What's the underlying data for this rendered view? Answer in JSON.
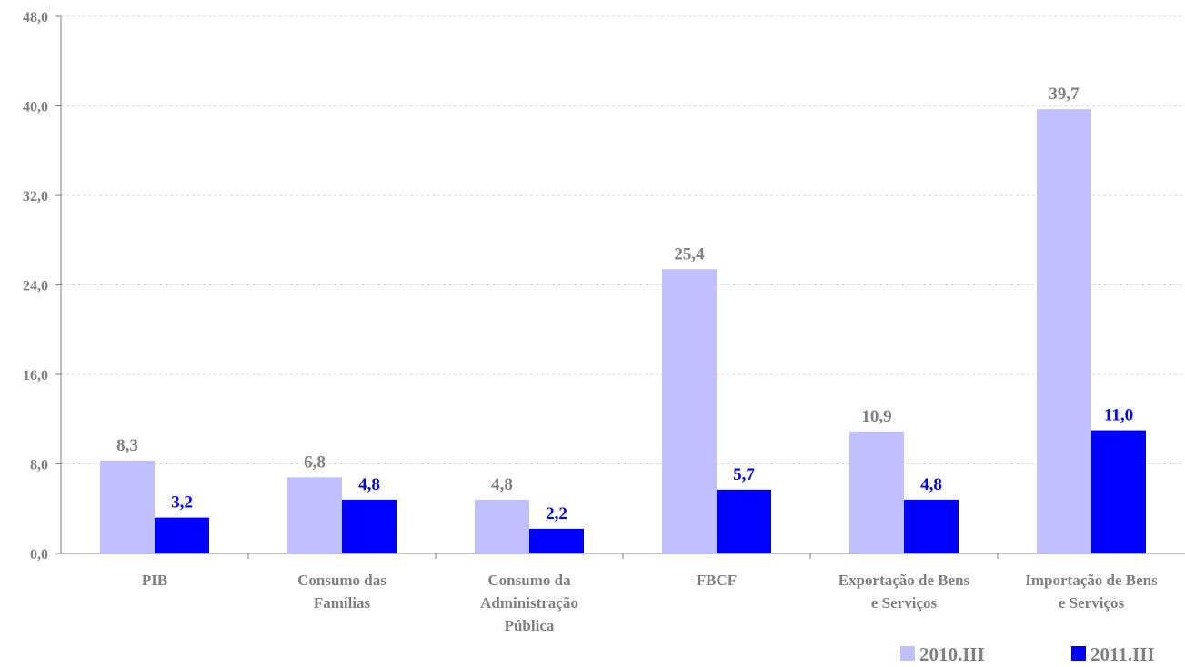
{
  "chart_data": {
    "type": "bar",
    "categories": [
      [
        "PIB"
      ],
      [
        "Consumo das",
        "Famílias"
      ],
      [
        "Consumo da",
        "Administração",
        "Pública"
      ],
      [
        "FBCF"
      ],
      [
        "Exportação de Bens",
        "e Serviços"
      ],
      [
        "Importação de Bens",
        "e Serviços"
      ]
    ],
    "series": [
      {
        "name": "2010.III",
        "color": "#c0c0ff",
        "label_color": "#808080",
        "values": [
          8.3,
          6.8,
          4.8,
          25.4,
          10.9,
          39.7
        ],
        "labels": [
          "8,3",
          "6,8",
          "4,8",
          "25,4",
          "10,9",
          "39,7"
        ]
      },
      {
        "name": "2011.III",
        "color": "#0000ff",
        "label_color": "#0000ff",
        "values": [
          3.2,
          4.8,
          2.2,
          5.7,
          4.8,
          11.0
        ],
        "labels": [
          "3,2",
          "4,8",
          "2,2",
          "5,7",
          "4,8",
          "11,0"
        ]
      }
    ],
    "ylim": [
      0,
      48
    ],
    "yticks": [
      0,
      8,
      16,
      24,
      32,
      40,
      48
    ],
    "ytick_labels": [
      "0,0",
      "8,0",
      "16,0",
      "24,0",
      "32,0",
      "40,0",
      "48,0"
    ],
    "grid": true,
    "legend_position": "bottom-right"
  }
}
